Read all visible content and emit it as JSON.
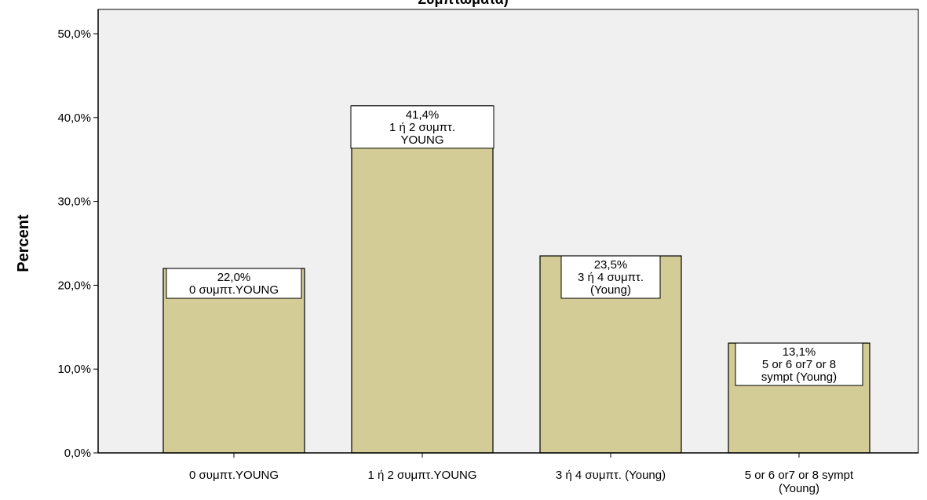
{
  "chart_data": {
    "type": "bar",
    "title": "Συμπτώματα)",
    "xlabel": "",
    "ylabel": "Percent",
    "ylim": [
      0,
      50
    ],
    "yticks": [
      "0,0%",
      "10,0%",
      "20,0%",
      "30,0%",
      "40,0%",
      "50,0%"
    ],
    "categories": [
      [
        "0 συμπτ.YOUNG"
      ],
      [
        "1 ή 2  συμπτ.YOUNG"
      ],
      [
        "3 ή 4 συμπτ. (Young)"
      ],
      [
        "5 or 6 or7 or 8 sympt",
        "(Young)"
      ]
    ],
    "values": [
      22.0,
      41.4,
      23.5,
      13.1
    ],
    "data_labels": [
      [
        "22,0%",
        "0 συμπτ.YOUNG"
      ],
      [
        "41,4%",
        "1 ή 2  συμπτ.",
        "YOUNG"
      ],
      [
        "23,5%",
        "3 ή 4 συμπτ.",
        "(Young)"
      ],
      [
        "13,1%",
        "5 or 6 or7 or 8",
        "sympt (Young)"
      ]
    ],
    "grid": false,
    "colors": {
      "bar_fill": "#d3cc96",
      "plot_background": "#f0f0f0",
      "axis": "#000000",
      "label_box": "#ffffff"
    }
  }
}
